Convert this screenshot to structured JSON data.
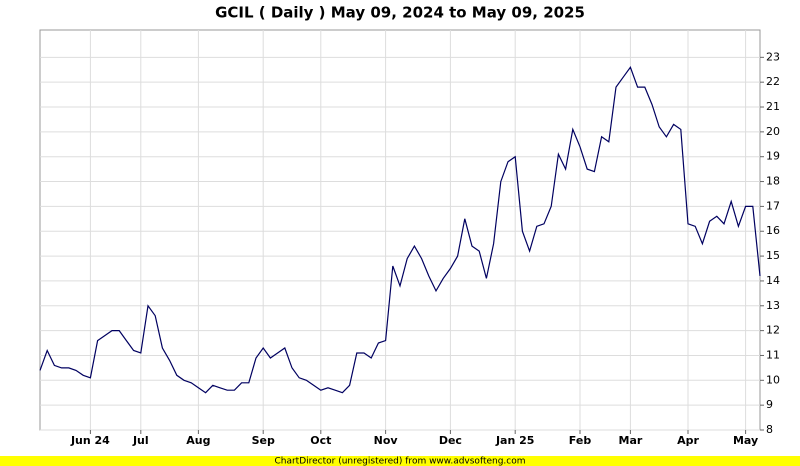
{
  "chart_data": {
    "type": "line",
    "title": "GCIL ( Daily ) May 09, 2024 to May 09, 2025",
    "footer": "ChartDirector (unregistered) from www.advsofteng.com",
    "categories": [
      null,
      null,
      null,
      null,
      null,
      null,
      null,
      "Jun 24",
      null,
      null,
      null,
      null,
      null,
      null,
      "Jul",
      null,
      null,
      null,
      null,
      null,
      null,
      null,
      "Aug",
      null,
      null,
      null,
      null,
      null,
      null,
      null,
      null,
      "Sep",
      null,
      null,
      null,
      null,
      null,
      null,
      null,
      "Oct",
      null,
      null,
      null,
      null,
      null,
      null,
      null,
      null,
      "Nov",
      null,
      null,
      null,
      null,
      null,
      null,
      null,
      null,
      "Dec",
      null,
      null,
      null,
      null,
      null,
      null,
      null,
      null,
      "Jan 25",
      null,
      null,
      null,
      null,
      null,
      null,
      null,
      null,
      "Feb",
      null,
      null,
      null,
      null,
      null,
      null,
      "Mar",
      null,
      null,
      null,
      null,
      null,
      null,
      null,
      "Apr",
      null,
      null,
      null,
      null,
      null,
      null,
      null,
      "May",
      null,
      null
    ],
    "series": [
      {
        "name": "GCIL",
        "color": "#000060",
        "values": [
          10.4,
          11.2,
          10.6,
          10.5,
          10.5,
          10.4,
          10.2,
          10.1,
          11.6,
          11.8,
          12.0,
          12.0,
          11.6,
          11.2,
          11.1,
          13.0,
          12.6,
          11.3,
          10.8,
          10.2,
          10.0,
          9.9,
          9.7,
          9.5,
          9.8,
          9.7,
          9.6,
          9.6,
          9.9,
          9.9,
          10.9,
          11.3,
          10.9,
          11.1,
          11.3,
          10.5,
          10.1,
          10.0,
          9.8,
          9.6,
          9.7,
          9.6,
          9.5,
          9.8,
          11.1,
          11.1,
          10.9,
          11.5,
          11.6,
          14.6,
          13.8,
          14.9,
          15.4,
          14.9,
          14.2,
          13.6,
          14.1,
          14.5,
          15.0,
          16.5,
          15.4,
          15.2,
          14.1,
          15.5,
          18.0,
          18.8,
          19.0,
          16.0,
          15.2,
          16.2,
          16.3,
          17.0,
          19.1,
          18.5,
          20.1,
          19.4,
          18.5,
          18.4,
          19.8,
          19.6,
          21.8,
          22.2,
          22.6,
          21.8,
          21.8,
          21.1,
          20.2,
          19.8,
          20.3,
          20.1,
          16.3,
          16.2,
          15.5,
          16.4,
          16.6,
          16.3,
          17.2,
          16.2,
          17.0,
          17.0,
          14.2
        ]
      }
    ],
    "ylim": [
      8,
      24.1
    ],
    "yticks": [
      8,
      9,
      10,
      11,
      12,
      13,
      14,
      15,
      16,
      17,
      18,
      19,
      20,
      21,
      22,
      23
    ],
    "grid": true
  }
}
